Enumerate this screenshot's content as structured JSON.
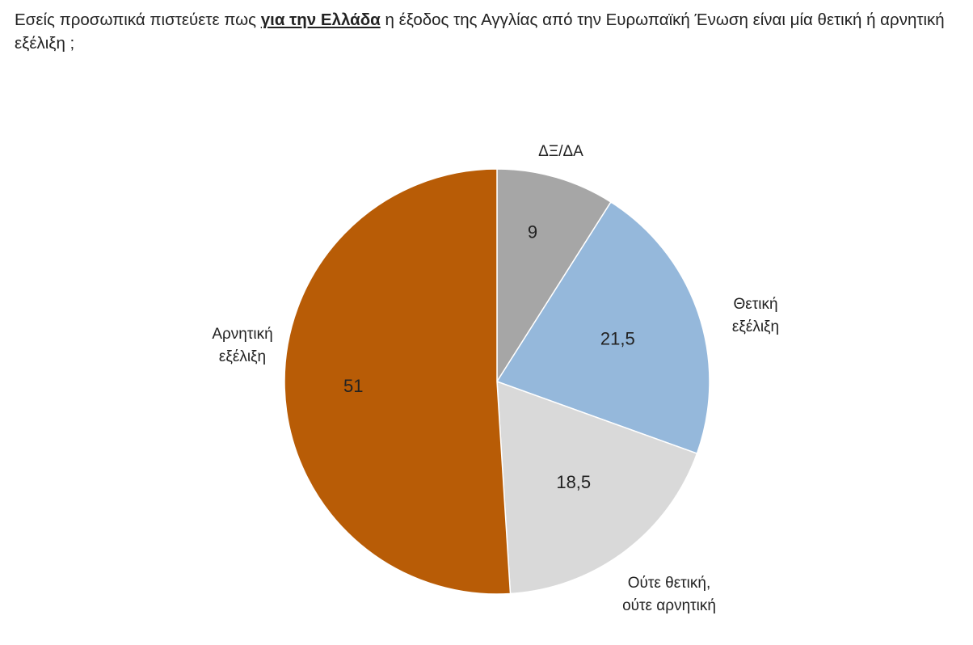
{
  "question": {
    "before": "Εσείς προσωπικά πιστεύετε πως",
    "emphasis": "για την Ελλάδα",
    "after": "η έξοδος της Αγγλίας από την Ευρωπαϊκή Ένωση είναι μία θετική ή αρνητική εξέλιξη ;"
  },
  "chart_data": {
    "type": "pie",
    "title": "",
    "start_angle_deg": 0,
    "direction": "clockwise",
    "slices": [
      {
        "label": "ΔΞ/ΔΑ",
        "value": 9,
        "value_text": "9",
        "color": "#a6a6a6"
      },
      {
        "label": "Θετική εξέλιξη",
        "value": 21.5,
        "value_text": "21,5",
        "color": "#95b8db"
      },
      {
        "label": "Ούτε θετική, ούτε αρνητική",
        "value": 18.5,
        "value_text": "18,5",
        "color": "#d9d9d9"
      },
      {
        "label": "Αρνητική εξέλιξη",
        "value": 51,
        "value_text": "51",
        "color": "#b85c06"
      }
    ]
  }
}
